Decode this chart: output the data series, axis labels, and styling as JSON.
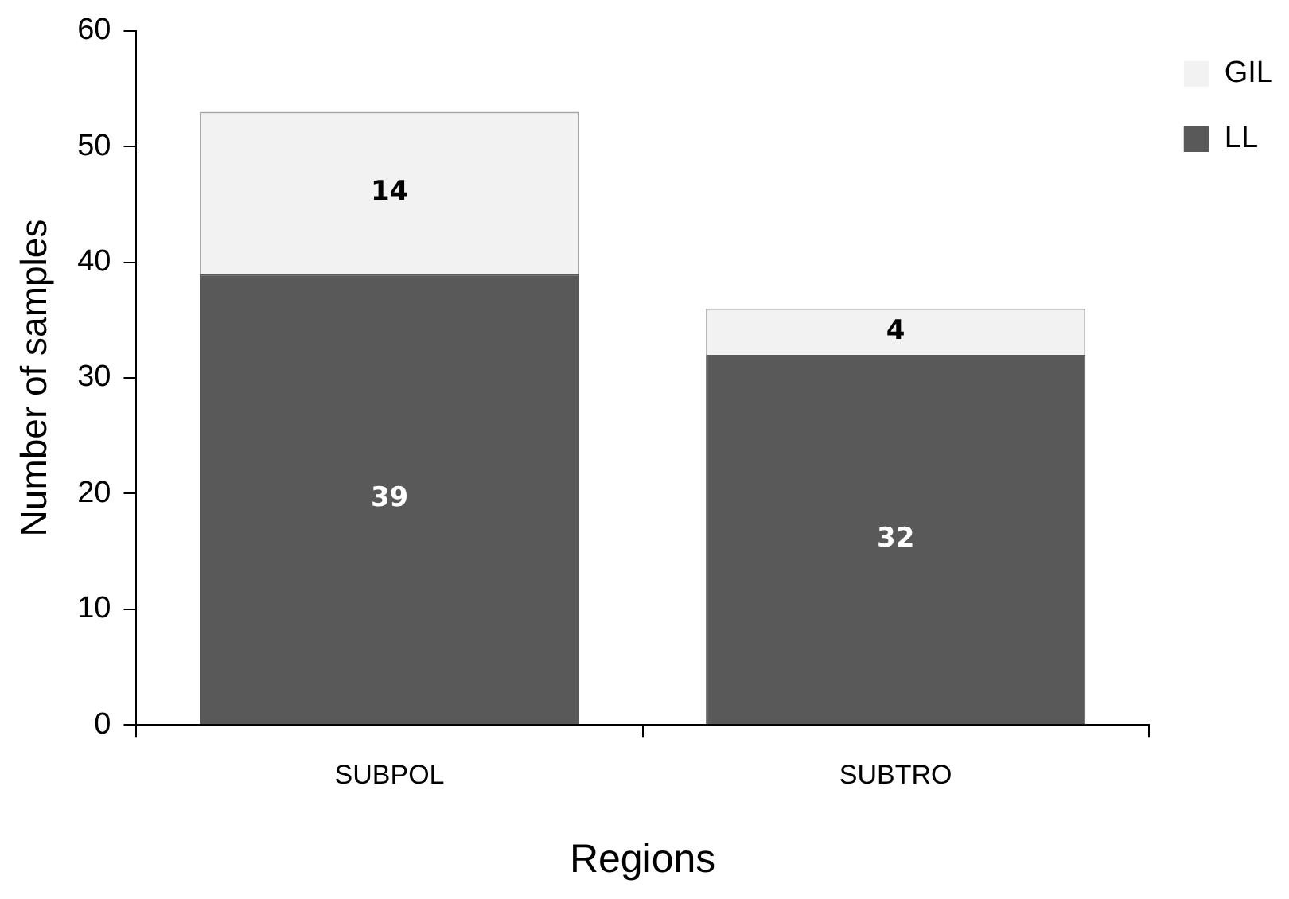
{
  "chart_data": {
    "type": "bar",
    "stacked": true,
    "xlabel": "Regions",
    "ylabel": "Number of samples",
    "categories": [
      "SUBPOL",
      "SUBTRO"
    ],
    "series": [
      {
        "name": "LL",
        "color": "#595959",
        "values": [
          39,
          32
        ]
      },
      {
        "name": "GIL",
        "color": "#f2f2f2",
        "values": [
          14,
          4
        ]
      }
    ],
    "ylim": [
      0,
      60
    ],
    "yticks": [
      0,
      10,
      20,
      30,
      40,
      50,
      60
    ],
    "grid": false,
    "legend": "top right",
    "data_labels": true
  }
}
